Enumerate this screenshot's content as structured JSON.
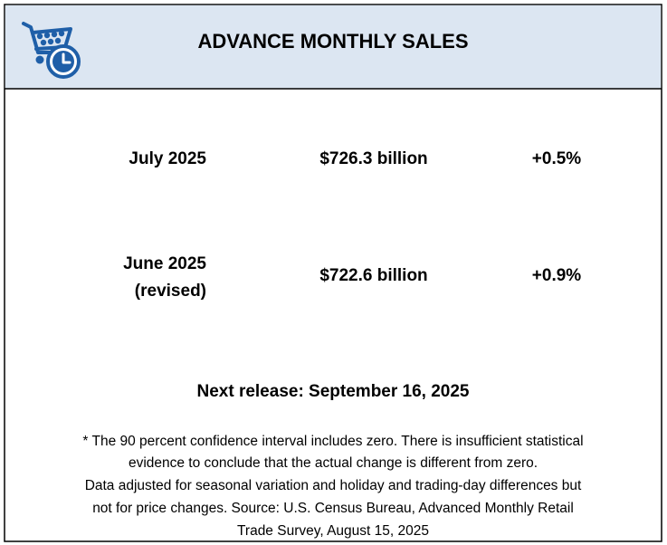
{
  "header": {
    "title": "ADVANCE MONTHLY SALES"
  },
  "rows": [
    {
      "period": "July 2025",
      "amount": "$726.3 billion",
      "change": "+0.5%"
    },
    {
      "period": "June 2025",
      "note": "(revised)",
      "amount": "$722.6 billion",
      "change": "+0.9%"
    }
  ],
  "next_release": "Next release: September 16, 2025",
  "footnote": [
    "* The 90 percent confidence interval includes zero. There is insufficient statistical",
    "evidence to conclude that the actual change is different from zero.",
    "Data adjusted for seasonal variation and holiday and trading-day differences but",
    "not for price changes. Source: U.S. Census Bureau, Advanced Monthly Retail",
    "Trade Survey, August 15, 2025"
  ]
}
